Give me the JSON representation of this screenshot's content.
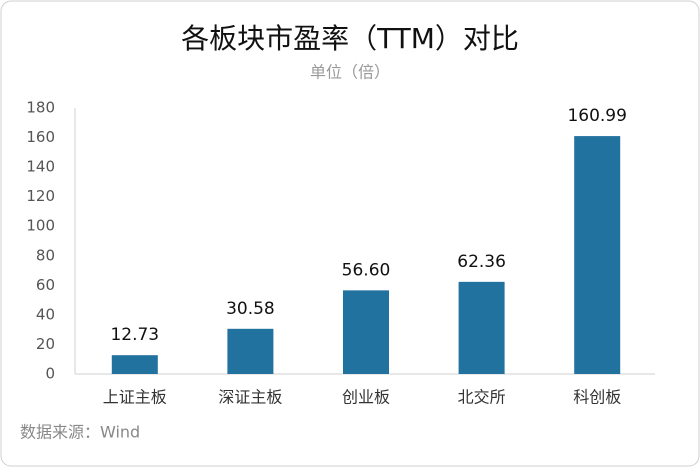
{
  "chart_data": {
    "type": "bar",
    "title": "各板块市盈率（TTM）对比",
    "subtitle": "单位（倍）",
    "source": "数据来源：Wind",
    "categories": [
      "上证主板",
      "深证主板",
      "创业板",
      "北交所",
      "科创板"
    ],
    "values": [
      12.73,
      30.58,
      56.6,
      62.36,
      160.99
    ],
    "value_labels": [
      "12.73",
      "30.58",
      "56.60",
      "62.36",
      "160.99"
    ],
    "color": "#22729f",
    "ylim": [
      0,
      180
    ],
    "yticks": [
      0,
      20,
      40,
      60,
      80,
      100,
      120,
      140,
      160,
      180
    ],
    "grid": false
  }
}
